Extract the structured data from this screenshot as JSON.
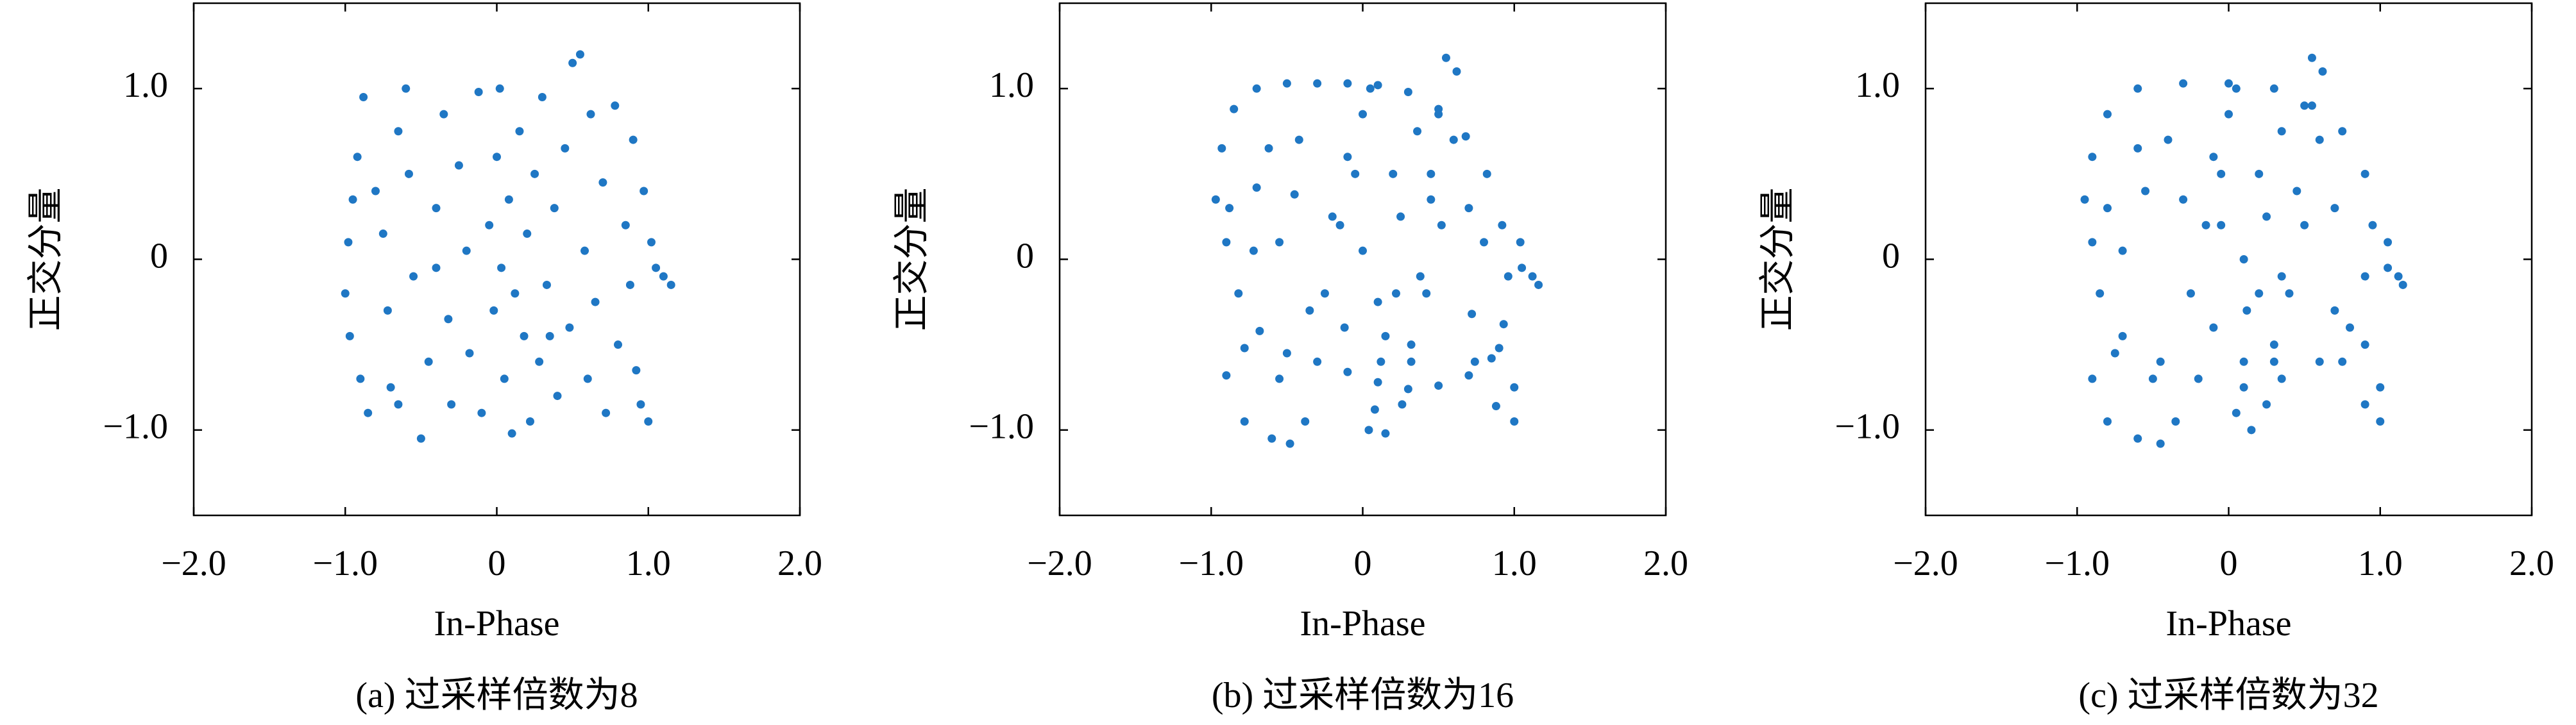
{
  "chart_data": [
    {
      "type": "scatter",
      "title": "(a) 过采样倍数为8",
      "x_label": "In-Phase",
      "y_label": "正交分量",
      "color": "#1f77c4",
      "xlim": [
        -2,
        2
      ],
      "ylim": [
        -1.5,
        1.5
      ],
      "xticks": [
        {
          "value": -2,
          "label": "−2.0"
        },
        {
          "value": -1,
          "label": "−1.0"
        },
        0,
        {
          "value": 1,
          "label": "1.0"
        },
        {
          "value": 2,
          "label": "2.0"
        }
      ],
      "yticks": [
        {
          "value": -1,
          "label": "−1.0"
        },
        0,
        {
          "value": 1,
          "label": "1.0"
        }
      ],
      "x": [
        -0.95,
        -0.98,
        -1.0,
        -0.97,
        -0.9,
        -0.92,
        -0.88,
        -0.8,
        -0.75,
        -0.72,
        -0.7,
        -0.65,
        -0.6,
        -0.58,
        -0.55,
        -0.5,
        -0.45,
        -0.4,
        -0.35,
        -0.32,
        -0.3,
        -0.25,
        -0.2,
        -0.18,
        -0.12,
        -0.1,
        -0.05,
        -0.02,
        0.0,
        0.02,
        0.03,
        0.05,
        0.08,
        0.1,
        0.12,
        0.15,
        0.18,
        0.2,
        0.22,
        0.25,
        0.28,
        0.3,
        0.33,
        0.38,
        0.4,
        0.45,
        0.48,
        0.5,
        0.55,
        0.58,
        0.6,
        0.62,
        0.65,
        0.7,
        0.72,
        0.78,
        0.8,
        0.85,
        0.88,
        0.9,
        0.92,
        0.95,
        0.97,
        1.0,
        1.02,
        1.05,
        1.1,
        1.15,
        -0.85,
        -0.4,
        0.35,
        -0.65
      ],
      "values": [
        0.35,
        0.1,
        -0.2,
        -0.45,
        -0.7,
        0.6,
        0.95,
        0.4,
        0.15,
        -0.3,
        -0.75,
        0.75,
        1.0,
        0.5,
        -0.1,
        -1.05,
        -0.6,
        0.3,
        0.85,
        -0.35,
        -0.85,
        0.55,
        0.05,
        -0.55,
        0.98,
        -0.9,
        0.2,
        -0.3,
        0.6,
        1.0,
        -0.05,
        -0.7,
        0.35,
        -1.02,
        -0.2,
        0.75,
        -0.45,
        0.15,
        -0.95,
        0.5,
        -0.6,
        0.95,
        -0.15,
        0.3,
        -0.8,
        0.65,
        -0.4,
        1.15,
        1.2,
        0.05,
        -0.7,
        0.85,
        -0.25,
        0.45,
        -0.9,
        0.9,
        -0.5,
        0.2,
        -0.15,
        0.7,
        -0.65,
        -0.85,
        0.4,
        -0.95,
        0.1,
        -0.05,
        -0.1,
        -0.15,
        -0.9,
        -0.05,
        -0.45,
        -0.85
      ]
    },
    {
      "type": "scatter",
      "title": "(b) 过采样倍数为16",
      "x_label": "In-Phase",
      "y_label": "正交分量",
      "color": "#1f77c4",
      "xlim": [
        -2,
        2
      ],
      "ylim": [
        -1.5,
        1.5
      ],
      "xticks": [
        {
          "value": -2,
          "label": "−2.0"
        },
        {
          "value": -1,
          "label": "−1.0"
        },
        0,
        {
          "value": 1,
          "label": "1.0"
        },
        {
          "value": 2,
          "label": "2.0"
        }
      ],
      "yticks": [
        {
          "value": -1,
          "label": "−1.0"
        },
        0,
        {
          "value": 1,
          "label": "1.0"
        }
      ],
      "x": [
        -0.97,
        -0.93,
        -0.85,
        -0.7,
        -0.5,
        -0.3,
        -0.1,
        0.1,
        0.3,
        0.5,
        0.68,
        0.82,
        0.92,
        0.96,
        0.93,
        0.85,
        0.7,
        0.5,
        0.3,
        0.1,
        -0.1,
        -0.3,
        -0.5,
        -0.68,
        -0.82,
        -0.9,
        -0.88,
        -0.7,
        -0.45,
        -0.2,
        0.0,
        0.1,
        0.12,
        0.08,
        0.04,
        0.15,
        0.26,
        0.32,
        0.38,
        0.45,
        0.5,
        0.55,
        0.62,
        0.6,
        0.52,
        0.42,
        0.32,
        -0.6,
        -0.78,
        -0.9,
        -0.78,
        -0.55,
        -0.38,
        -0.48,
        0.72,
        0.9,
        1.0,
        1.0,
        0.88,
        0.74,
        1.05,
        1.12,
        1.16,
        1.04,
        -0.1,
        0.0,
        0.05,
        -0.05,
        -0.15,
        -0.25,
        -0.12,
        0.2,
        0.22,
        -0.42,
        -0.62,
        0.36,
        0.7,
        -0.72,
        0.25,
        -0.35,
        0.15,
        0.45,
        -0.55,
        0.8
      ],
      "values": [
        0.35,
        0.65,
        0.88,
        1.0,
        1.03,
        1.03,
        1.03,
        1.02,
        0.98,
        0.88,
        0.72,
        0.5,
        0.2,
        -0.1,
        -0.38,
        -0.58,
        -0.68,
        -0.74,
        -0.76,
        -0.72,
        -0.66,
        -0.6,
        -0.55,
        -0.42,
        -0.2,
        0.1,
        0.3,
        0.42,
        0.38,
        0.25,
        0.05,
        -0.25,
        -0.6,
        -0.88,
        -1.0,
        -1.02,
        -0.85,
        -0.5,
        -0.1,
        0.35,
        0.85,
        1.18,
        1.1,
        0.7,
        0.2,
        -0.2,
        -0.6,
        -1.05,
        -0.95,
        -0.68,
        -0.52,
        -0.7,
        -0.95,
        -1.08,
        -0.32,
        -0.52,
        -0.75,
        -0.95,
        -0.86,
        -0.6,
        -0.05,
        -0.1,
        -0.15,
        0.1,
        0.6,
        0.85,
        1.0,
        0.5,
        0.2,
        -0.2,
        -0.4,
        0.5,
        -0.2,
        0.7,
        0.65,
        0.75,
        0.3,
        0.05,
        0.25,
        -0.3,
        -0.45,
        0.5,
        0.1,
        0.1
      ]
    },
    {
      "type": "scatter",
      "title": "(c) 过采样倍数为32",
      "x_label": "In-Phase",
      "y_label": "正交分量",
      "color": "#1f77c4",
      "xlim": [
        -2,
        2
      ],
      "ylim": [
        -1.5,
        1.5
      ],
      "xticks": [
        {
          "value": -2,
          "label": "−2.0"
        },
        {
          "value": -1,
          "label": "−1.0"
        },
        0,
        {
          "value": 1,
          "label": "1.0"
        },
        {
          "value": 2,
          "label": "2.0"
        }
      ],
      "yticks": [
        {
          "value": -1,
          "label": "−1.0"
        },
        0,
        {
          "value": 1,
          "label": "1.0"
        }
      ],
      "x": [
        -0.95,
        -0.9,
        -0.8,
        -0.6,
        -0.3,
        0,
        0.3,
        0.55,
        0.75,
        0.9,
        0.95,
        0.9,
        0.8,
        0.6,
        0.35,
        0.1,
        -0.2,
        -0.45,
        -0.7,
        -0.85,
        -0.9,
        -0.8,
        -0.55,
        -0.3,
        -0.05,
        0.1,
        0.12,
        0.1,
        0.05,
        0.15,
        0.25,
        0.3,
        0.35,
        0.45,
        0.5,
        0.55,
        0.62,
        0.6,
        0.5,
        0.4,
        0.3,
        -0.6,
        -0.8,
        -0.9,
        -0.75,
        -0.5,
        -0.35,
        -0.45,
        0.7,
        0.9,
        1.0,
        1.0,
        0.9,
        0.75,
        1.05,
        1.12,
        1.15,
        1.05,
        -0.1,
        0,
        0.05,
        -0.05,
        -0.15,
        -0.25,
        -0.1,
        0.2,
        0.2,
        -0.4,
        -0.6,
        0.35,
        0.7,
        -0.7,
        0.25
      ],
      "values": [
        0.35,
        0.6,
        0.85,
        1.0,
        1.03,
        1.03,
        1.0,
        0.9,
        0.75,
        0.5,
        0.2,
        -0.1,
        -0.4,
        -0.6,
        -0.7,
        -0.75,
        -0.7,
        -0.6,
        -0.45,
        -0.2,
        0.1,
        0.3,
        0.4,
        0.35,
        0.2,
        0,
        -0.3,
        -0.6,
        -0.9,
        -1.0,
        -0.85,
        -0.5,
        -0.1,
        0.4,
        0.9,
        1.18,
        1.1,
        0.7,
        0.2,
        -0.2,
        -0.6,
        -1.05,
        -0.95,
        -0.7,
        -0.55,
        -0.7,
        -0.95,
        -1.08,
        -0.3,
        -0.5,
        -0.75,
        -0.95,
        -0.85,
        -0.6,
        -0.05,
        -0.1,
        -0.15,
        0.1,
        0.6,
        0.85,
        1.0,
        0.5,
        0.2,
        -0.2,
        -0.4,
        0.5,
        -0.2,
        0.7,
        0.65,
        0.75,
        0.3,
        0.05,
        0.25
      ]
    }
  ]
}
